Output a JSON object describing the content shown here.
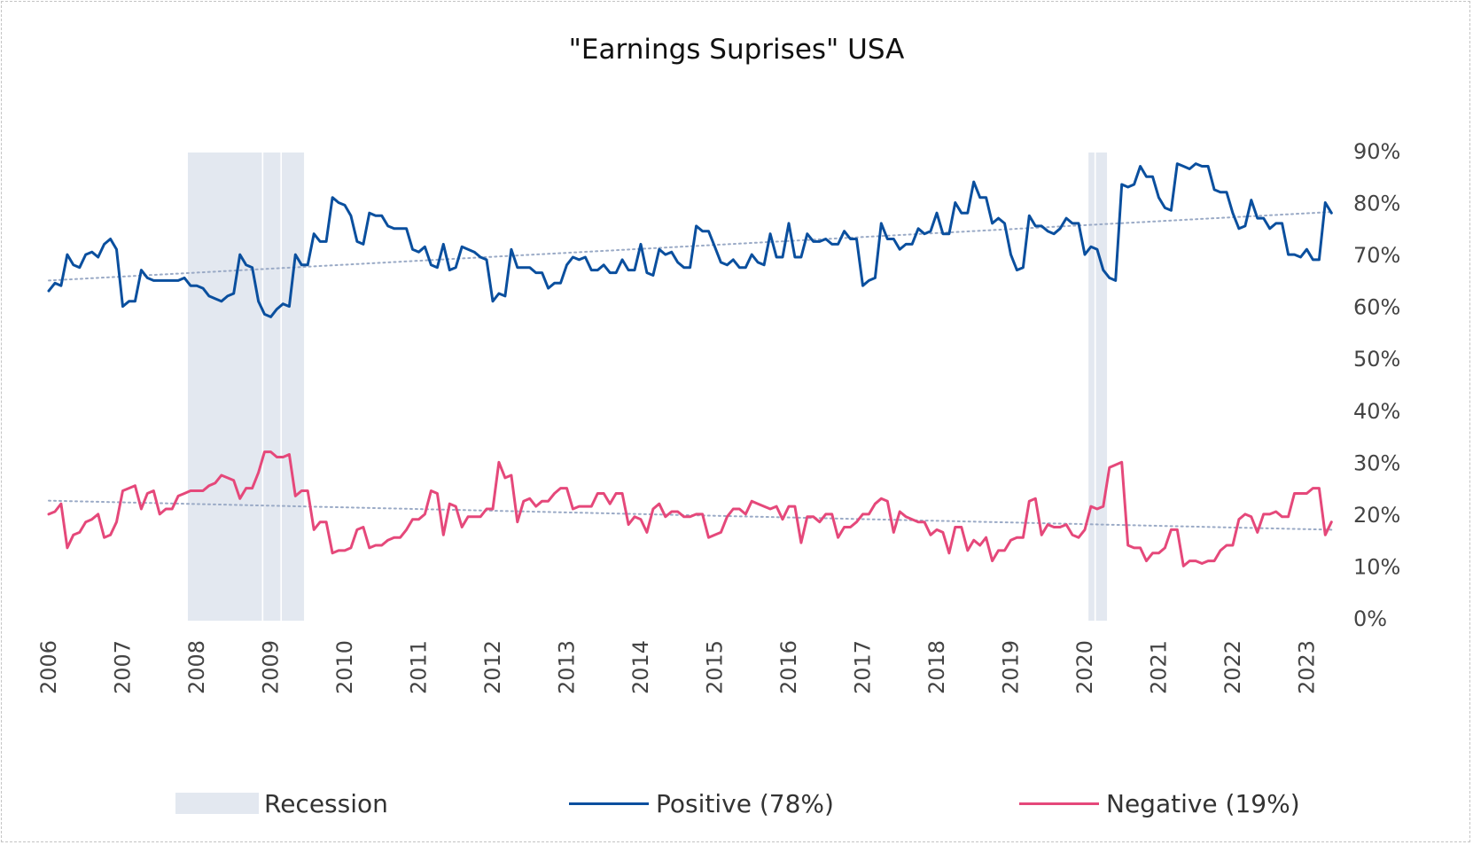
{
  "chart_data": {
    "type": "line",
    "title": "\"Earnings Suprises\" USA",
    "xlabel": "",
    "ylabel": "",
    "x_start": 2006.0,
    "x_step_years": 0.08333,
    "xlim": [
      2006,
      2023.4
    ],
    "ylim": [
      0,
      90
    ],
    "y_ticks": [
      "0%",
      "10%",
      "20%",
      "30%",
      "40%",
      "50%",
      "60%",
      "70%",
      "80%",
      "90%"
    ],
    "y_tick_values": [
      0,
      10,
      20,
      30,
      40,
      50,
      60,
      70,
      80,
      90
    ],
    "y_axis_side": "right",
    "x_ticks": [
      "2006",
      "2007",
      "2008",
      "2009",
      "2010",
      "2011",
      "2012",
      "2013",
      "2014",
      "2015",
      "2016",
      "2017",
      "2018",
      "2019",
      "2020",
      "2021",
      "2022",
      "2023"
    ],
    "x_tick_values": [
      2006,
      2007,
      2008,
      2009,
      2010,
      2011,
      2012,
      2013,
      2014,
      2015,
      2016,
      2017,
      2018,
      2019,
      2020,
      2021,
      2022,
      2023
    ],
    "grid": false,
    "legend_position": "bottom",
    "recessions": [
      {
        "start": 2007.88,
        "end": 2008.88
      },
      {
        "start": 2008.9,
        "end": 2009.13
      },
      {
        "start": 2009.15,
        "end": 2009.45
      },
      {
        "start": 2020.05,
        "end": 2020.13
      },
      {
        "start": 2020.15,
        "end": 2020.3
      }
    ],
    "series": [
      {
        "name": "Positive (78%)",
        "color": "#0a4f9e",
        "trend": [
          65.0,
          78.2
        ],
        "values": [
          63,
          64.5,
          64,
          70,
          68,
          67.5,
          70,
          70.5,
          69.5,
          72,
          73,
          71,
          60,
          61,
          61,
          67,
          65.5,
          65,
          65,
          65,
          65,
          65,
          65.5,
          64,
          64,
          63.5,
          62,
          61.5,
          61,
          62,
          62.5,
          70,
          68,
          67.5,
          61,
          58.5,
          58,
          59.5,
          60.5,
          60,
          70,
          68,
          68,
          74,
          72.5,
          72.5,
          81,
          80,
          79.5,
          77.5,
          72.5,
          72,
          78,
          77.5,
          77.5,
          75.5,
          75,
          75,
          75,
          71,
          70.5,
          71.5,
          68,
          67.5,
          72,
          67,
          67.5,
          71.5,
          71,
          70.5,
          69.5,
          69,
          61,
          62.5,
          62,
          71,
          67.5,
          67.5,
          67.5,
          66.5,
          66.5,
          63.5,
          64.5,
          64.5,
          68,
          69.5,
          69,
          69.5,
          67,
          67,
          68,
          66.5,
          66.5,
          69,
          67,
          67,
          72,
          66.5,
          66,
          71,
          70,
          70.5,
          68.5,
          67.5,
          67.5,
          75.5,
          74.5,
          74.5,
          71.5,
          68.5,
          68,
          69,
          67.5,
          67.5,
          70,
          68.5,
          68,
          74,
          69.5,
          69.5,
          76,
          69.5,
          69.5,
          74,
          72.5,
          72.5,
          73,
          72,
          72,
          74.5,
          73,
          73,
          64,
          65,
          65.5,
          76,
          73,
          73,
          71,
          72,
          72,
          75,
          74,
          74.5,
          78,
          74,
          74,
          80,
          78,
          78,
          84,
          81,
          81,
          76,
          77,
          76,
          70,
          67,
          67.5,
          77.5,
          75.5,
          75.5,
          74.5,
          74,
          75,
          77,
          76,
          76,
          70,
          71.5,
          71,
          67,
          65.5,
          65,
          83.5,
          83,
          83.5,
          87,
          85,
          85,
          81,
          79,
          78.5,
          87.5,
          87,
          86.5,
          87.5,
          87,
          87,
          82.5,
          82,
          82,
          78,
          75,
          75.5,
          80.5,
          77,
          77,
          75,
          76,
          76,
          70,
          70,
          69.5,
          71,
          69,
          69,
          80,
          78
        ]
      },
      {
        "name": "Negative (19%)",
        "color": "#e5487a",
        "trend": [
          22.6,
          17.0
        ],
        "values": [
          20,
          20.5,
          22,
          13.5,
          16,
          16.5,
          18.5,
          19,
          20,
          15.5,
          16,
          18.5,
          24.5,
          25,
          25.5,
          21,
          24,
          24.5,
          20,
          21,
          21,
          23.5,
          24,
          24.5,
          24.5,
          24.5,
          25.5,
          26,
          27.5,
          27,
          26.5,
          23,
          25,
          25,
          28,
          32,
          32,
          31,
          31,
          31.5,
          23.5,
          24.5,
          24.5,
          17,
          18.5,
          18.5,
          12.5,
          13,
          13,
          13.5,
          17,
          17.5,
          13.5,
          14,
          14,
          15,
          15.5,
          15.5,
          17,
          19,
          19,
          20,
          24.5,
          24,
          16,
          22,
          21.5,
          17.5,
          19.5,
          19.5,
          19.5,
          21,
          21,
          30,
          27,
          27.5,
          18.5,
          22.5,
          23,
          21.5,
          22.5,
          22.5,
          24,
          25,
          25,
          21,
          21.5,
          21.5,
          21.5,
          24,
          24,
          22,
          24,
          24,
          18,
          19.5,
          19,
          16.5,
          21,
          22,
          19.5,
          20.5,
          20.5,
          19.5,
          19.5,
          20,
          20,
          15.5,
          16,
          16.5,
          19.5,
          21,
          21,
          20,
          22.5,
          22,
          21.5,
          21,
          21.5,
          19,
          21.5,
          21.5,
          14.5,
          19.5,
          19.5,
          18.5,
          20,
          20,
          15.5,
          17.5,
          17.5,
          18.5,
          20,
          20,
          22,
          23,
          22.5,
          16.5,
          20.5,
          19.5,
          19,
          18.5,
          18.5,
          16,
          17,
          16.5,
          12.5,
          17.5,
          17.5,
          13,
          15,
          14,
          15.5,
          11,
          13,
          13,
          15,
          15.5,
          15.5,
          22.5,
          23,
          16,
          18,
          17.5,
          17.5,
          18,
          16,
          15.5,
          17,
          21.5,
          21,
          21.5,
          29,
          29.5,
          30,
          14,
          13.5,
          13.5,
          11,
          12.5,
          12.5,
          13.5,
          17,
          17,
          10,
          11,
          11,
          10.5,
          11,
          11,
          13,
          14,
          14,
          19,
          20,
          19.5,
          16.5,
          20,
          20,
          20.5,
          19.5,
          19.5,
          24,
          24,
          24,
          25,
          25,
          16,
          18.5
        ]
      }
    ]
  },
  "legend": {
    "items": [
      {
        "label": "Recession",
        "color": "#e3e8f0"
      },
      {
        "label": "Positive (78%)",
        "color": "#0a4f9e"
      },
      {
        "label": "Negative (19%)",
        "color": "#e5487a"
      }
    ]
  }
}
